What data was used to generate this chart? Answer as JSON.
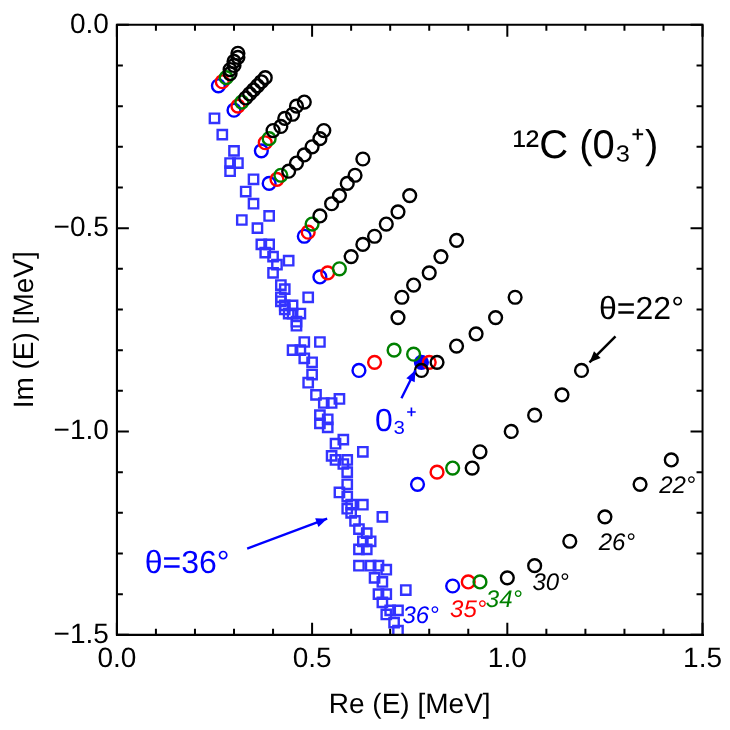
{
  "chart_data": {
    "type": "scatter",
    "xlabel": "Re (E) [MeV]",
    "ylabel": "Im (E) [MeV]",
    "xlim": [
      0,
      1.5
    ],
    "ylim": [
      -1.5,
      0
    ],
    "xticks": [
      {
        "value": 0,
        "label": "0.0"
      },
      {
        "value": 0.1,
        "label": null
      },
      {
        "value": 0.2,
        "label": null
      },
      {
        "value": 0.3,
        "label": null
      },
      {
        "value": 0.4,
        "label": null
      },
      {
        "value": 0.5,
        "label": "0.5"
      },
      {
        "value": 0.6,
        "label": null
      },
      {
        "value": 0.7,
        "label": null
      },
      {
        "value": 0.8,
        "label": null
      },
      {
        "value": 0.9,
        "label": null
      },
      {
        "value": 1,
        "label": "1.0"
      },
      {
        "value": 1.1,
        "label": null
      },
      {
        "value": 1.2,
        "label": null
      },
      {
        "value": 1.3,
        "label": null
      },
      {
        "value": 1.4,
        "label": null
      },
      {
        "value": 1.5,
        "label": "1.5"
      }
    ],
    "yticks": [
      {
        "value": -1.5,
        "label": "−1.5"
      },
      {
        "value": -1.4,
        "label": null
      },
      {
        "value": -1.3,
        "label": null
      },
      {
        "value": -1.2,
        "label": null
      },
      {
        "value": -1.1,
        "label": null
      },
      {
        "value": -1,
        "label": "−1.0"
      },
      {
        "value": -0.9,
        "label": null
      },
      {
        "value": -0.8,
        "label": null
      },
      {
        "value": -0.7,
        "label": null
      },
      {
        "value": -0.6,
        "label": null
      },
      {
        "value": -0.5,
        "label": "−0.5"
      },
      {
        "value": -0.4,
        "label": null
      },
      {
        "value": -0.3,
        "label": null
      },
      {
        "value": -0.2,
        "label": null
      },
      {
        "value": -0.1,
        "label": null
      },
      {
        "value": 0,
        "label": "0.0"
      }
    ],
    "grid": false,
    "legend": false,
    "series": [
      {
        "color": "#3333ff",
        "marker": "square",
        "x": [
          0.25,
          0.27,
          0.3,
          0.29,
          0.31,
          0.29,
          0.35,
          0.33,
          0.35,
          0.32,
          0.39,
          0.36,
          0.37,
          0.39,
          0.38,
          0.4,
          0.41,
          0.4,
          0.44,
          0.42,
          0.43,
          0.42,
          0.45,
          0.43,
          0.49,
          0.44,
          0.46,
          0.47,
          0.42,
          0.43,
          0.45,
          0.46,
          0.45,
          0.47,
          0.48,
          0.48,
          0.5,
          0.52,
          0.5,
          0.49,
          0.51,
          0.53,
          0.55,
          0.57,
          0.52,
          0.54,
          0.54,
          0.52,
          0.56,
          0.58,
          0.55,
          0.56,
          0.59,
          0.58,
          0.59,
          0.63,
          0.59,
          0.57,
          0.59,
          0.6,
          0.63,
          0.59,
          0.6,
          0.61,
          0.68,
          0.62,
          0.64,
          0.63,
          0.65,
          0.62,
          0.64,
          0.62,
          0.65,
          0.67,
          0.69,
          0.66,
          0.68,
          0.67,
          0.69,
          0.74,
          0.68,
          0.7,
          0.72,
          0.69,
          0.71,
          0.72
        ],
        "values": [
          -0.23,
          -0.27,
          -0.31,
          -0.34,
          -0.34,
          -0.36,
          -0.38,
          -0.41,
          -0.44,
          -0.48,
          -0.47,
          -0.5,
          -0.54,
          -0.54,
          -0.56,
          -0.57,
          -0.59,
          -0.61,
          -0.58,
          -0.64,
          -0.65,
          -0.67,
          -0.69,
          -0.69,
          -0.67,
          -0.71,
          -0.73,
          -0.71,
          -0.68,
          -0.7,
          -0.71,
          -0.74,
          -0.8,
          -0.8,
          -0.78,
          -0.82,
          -0.83,
          -0.78,
          -0.86,
          -0.88,
          -0.91,
          -0.93,
          -0.93,
          -0.92,
          -0.96,
          -0.97,
          -0.99,
          -0.98,
          -1.03,
          -1.02,
          -1.06,
          -1.07,
          -1.07,
          -1.08,
          -1.1,
          -1.05,
          -1.13,
          -1.15,
          -1.16,
          -1.18,
          -1.18,
          -1.19,
          -1.2,
          -1.22,
          -1.21,
          -1.24,
          -1.25,
          -1.27,
          -1.27,
          -1.29,
          -1.29,
          -1.33,
          -1.33,
          -1.33,
          -1.34,
          -1.36,
          -1.37,
          -1.4,
          -1.4,
          -1.39,
          -1.42,
          -1.44,
          -1.44,
          -1.45,
          -1.47,
          -1.49
        ]
      },
      {
        "color": "#000000",
        "marker": "circle",
        "x": [
          0.29,
          0.29,
          0.3,
          0.3,
          0.31,
          0.31,
          0.33,
          0.34,
          0.35,
          0.36,
          0.37,
          0.38,
          0.4,
          0.42,
          0.43,
          0.45,
          0.46,
          0.48,
          0.44,
          0.46,
          0.48,
          0.5,
          0.52,
          0.53,
          0.52,
          0.55,
          0.57,
          0.59,
          0.61,
          0.63,
          0.6,
          0.63,
          0.66,
          0.69,
          0.72,
          0.75,
          0.72,
          0.73,
          0.76,
          0.8,
          0.83,
          0.87,
          0.78,
          0.82,
          0.87,
          0.92,
          0.97,
          1.02,
          0.91,
          0.93,
          1.01,
          1.07,
          1.14,
          1.19,
          1.0,
          1.07,
          1.16,
          1.25,
          1.34,
          1.42
        ],
        "values": [
          -0.12,
          -0.11,
          -0.1,
          -0.09,
          -0.08,
          -0.07,
          -0.18,
          -0.17,
          -0.16,
          -0.15,
          -0.14,
          -0.13,
          -0.26,
          -0.25,
          -0.23,
          -0.22,
          -0.2,
          -0.19,
          -0.36,
          -0.34,
          -0.32,
          -0.3,
          -0.28,
          -0.26,
          -0.47,
          -0.44,
          -0.42,
          -0.39,
          -0.37,
          -0.33,
          -0.57,
          -0.54,
          -0.52,
          -0.49,
          -0.46,
          -0.42,
          -0.72,
          -0.67,
          -0.64,
          -0.61,
          -0.57,
          -0.53,
          -0.85,
          -0.83,
          -0.79,
          -0.76,
          -0.72,
          -0.67,
          -1.09,
          -1.05,
          -1.0,
          -0.96,
          -0.91,
          -0.85,
          -1.36,
          -1.33,
          -1.27,
          -1.21,
          -1.13,
          -1.07
        ]
      },
      {
        "color": "#008000",
        "marker": "circle",
        "x": [
          0.28,
          0.32,
          0.39,
          0.42,
          0.5,
          0.57,
          0.71,
          0.76,
          0.86,
          0.93
        ],
        "values": [
          -0.13,
          -0.19,
          -0.28,
          -0.37,
          -0.49,
          -0.6,
          -0.8,
          -0.81,
          -1.09,
          -1.37
        ]
      },
      {
        "color": "#ff0000",
        "marker": "circle",
        "x": [
          0.27,
          0.31,
          0.38,
          0.41,
          0.49,
          0.54,
          0.66,
          0.8,
          0.82,
          0.9
        ],
        "values": [
          -0.14,
          -0.2,
          -0.29,
          -0.38,
          -0.51,
          -0.61,
          -0.83,
          -0.83,
          -1.1,
          -1.37
        ]
      },
      {
        "color": "#0000ff",
        "marker": "circle",
        "x": [
          0.26,
          0.3,
          0.37,
          0.39,
          0.48,
          0.52,
          0.62,
          0.77,
          0.86
        ],
        "values": [
          -0.15,
          -0.21,
          -0.31,
          -0.39,
          -0.52,
          -0.62,
          -0.85,
          -1.13,
          -1.38
        ]
      },
      {
        "color": "#0000ff",
        "marker": "circle",
        "x": [
          0.78
        ],
        "values": [
          -0.83
        ]
      }
    ],
    "annotations": [
      "¹²C (0₃⁺)",
      {
        "text": "θ=22°",
        "x": 1.19,
        "y": -0.85
      },
      "θ=36°",
      {
        "text": "0₃⁺",
        "x": 0.78,
        "y": -0.83
      },
      {
        "text": "36°",
        "x": 0.86,
        "y": -1.38
      },
      {
        "text": "35°",
        "x": 0.9,
        "y": -1.37
      },
      {
        "text": "34°",
        "x": 0.93,
        "y": -1.37
      },
      {
        "text": "30°",
        "x": 1.07,
        "y": -1.33
      },
      {
        "text": "26°",
        "x": 1.25,
        "y": -1.21
      },
      {
        "text": "22°",
        "x": 1.42,
        "y": -1.07
      }
    ]
  }
}
